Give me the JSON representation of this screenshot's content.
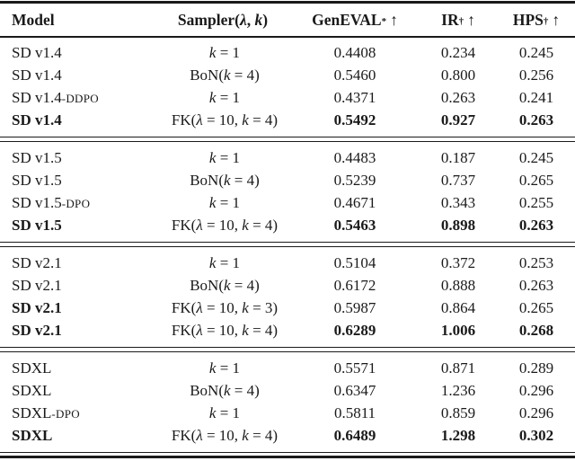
{
  "colors": {
    "text": "#1a1a1a",
    "background": "#ffffff",
    "rule": "#1a1a1a"
  },
  "table": {
    "header": [
      {
        "segments": [
          {
            "t": "Model"
          }
        ],
        "sup": "",
        "arrow": ""
      },
      {
        "segments": [
          {
            "t": "Sampler("
          },
          {
            "t": "λ",
            "i": true
          },
          {
            "t": ", "
          },
          {
            "t": "k",
            "i": true
          },
          {
            "t": ")"
          }
        ],
        "sup": "",
        "arrow": ""
      },
      {
        "segments": [
          {
            "t": "GenEVAL"
          }
        ],
        "sup": "*",
        "arrow": "↑"
      },
      {
        "segments": [
          {
            "t": "IR"
          }
        ],
        "sup": "†",
        "arrow": "↑"
      },
      {
        "segments": [
          {
            "t": "HPS"
          }
        ],
        "sup": "†",
        "arrow": "↑"
      }
    ],
    "blocks": [
      {
        "rows": [
          {
            "model": "SD v1.4",
            "suffix": "",
            "bold_model": false,
            "bold_values": false,
            "sampler": [
              {
                "t": "k",
                "i": true
              },
              {
                "t": " = 1"
              }
            ],
            "values": [
              "0.4408",
              "0.234",
              "0.245"
            ]
          },
          {
            "model": "SD v1.4",
            "suffix": "",
            "bold_model": false,
            "bold_values": false,
            "sampler": [
              {
                "t": "BoN("
              },
              {
                "t": "k",
                "i": true
              },
              {
                "t": " = 4)"
              }
            ],
            "values": [
              "0.5460",
              "0.800",
              "0.256"
            ]
          },
          {
            "model": "SD v1.4",
            "suffix": "-DDPO",
            "bold_model": false,
            "bold_values": false,
            "sampler": [
              {
                "t": "k",
                "i": true
              },
              {
                "t": " = 1"
              }
            ],
            "values": [
              "0.4371",
              "0.263",
              "0.241"
            ]
          },
          {
            "model": "SD v1.4",
            "suffix": "",
            "bold_model": true,
            "bold_values": true,
            "sampler": [
              {
                "t": "FK("
              },
              {
                "t": "λ",
                "i": true
              },
              {
                "t": " = 10, "
              },
              {
                "t": "k",
                "i": true
              },
              {
                "t": " = 4)"
              }
            ],
            "values": [
              "0.5492",
              "0.927",
              "0.263"
            ]
          }
        ]
      },
      {
        "rows": [
          {
            "model": "SD v1.5",
            "suffix": "",
            "bold_model": false,
            "bold_values": false,
            "sampler": [
              {
                "t": "k",
                "i": true
              },
              {
                "t": " = 1"
              }
            ],
            "values": [
              "0.4483",
              "0.187",
              "0.245"
            ]
          },
          {
            "model": "SD v1.5",
            "suffix": "",
            "bold_model": false,
            "bold_values": false,
            "sampler": [
              {
                "t": "BoN("
              },
              {
                "t": "k",
                "i": true
              },
              {
                "t": " = 4)"
              }
            ],
            "values": [
              "0.5239",
              "0.737",
              "0.265"
            ]
          },
          {
            "model": "SD v1.5",
            "suffix": "-DPO",
            "bold_model": false,
            "bold_values": false,
            "sampler": [
              {
                "t": "k",
                "i": true
              },
              {
                "t": " = 1"
              }
            ],
            "values": [
              "0.4671",
              "0.343",
              "0.255"
            ]
          },
          {
            "model": "SD v1.5",
            "suffix": "",
            "bold_model": true,
            "bold_values": true,
            "sampler": [
              {
                "t": "FK("
              },
              {
                "t": "λ",
                "i": true
              },
              {
                "t": " = 10, "
              },
              {
                "t": "k",
                "i": true
              },
              {
                "t": " = 4)"
              }
            ],
            "values": [
              "0.5463",
              "0.898",
              "0.263"
            ]
          }
        ]
      },
      {
        "rows": [
          {
            "model": "SD v2.1",
            "suffix": "",
            "bold_model": false,
            "bold_values": false,
            "sampler": [
              {
                "t": "k",
                "i": true
              },
              {
                "t": " = 1"
              }
            ],
            "values": [
              "0.5104",
              "0.372",
              "0.253"
            ]
          },
          {
            "model": "SD v2.1",
            "suffix": "",
            "bold_model": false,
            "bold_values": false,
            "sampler": [
              {
                "t": "BoN("
              },
              {
                "t": "k",
                "i": true
              },
              {
                "t": " = 4)"
              }
            ],
            "values": [
              "0.6172",
              "0.888",
              "0.263"
            ]
          },
          {
            "model": "SD v2.1",
            "suffix": "",
            "bold_model": true,
            "bold_values": false,
            "sampler": [
              {
                "t": "FK("
              },
              {
                "t": "λ",
                "i": true
              },
              {
                "t": " = 10, "
              },
              {
                "t": "k",
                "i": true
              },
              {
                "t": " = 3)"
              }
            ],
            "values": [
              "0.5987",
              "0.864",
              "0.265"
            ]
          },
          {
            "model": "SD v2.1",
            "suffix": "",
            "bold_model": true,
            "bold_values": true,
            "sampler": [
              {
                "t": "FK("
              },
              {
                "t": "λ",
                "i": true
              },
              {
                "t": " = 10, "
              },
              {
                "t": "k",
                "i": true
              },
              {
                "t": " = 4)"
              }
            ],
            "values": [
              "0.6289",
              "1.006",
              "0.268"
            ]
          }
        ]
      },
      {
        "rows": [
          {
            "model": "SDXL",
            "suffix": "",
            "bold_model": false,
            "bold_values": false,
            "sampler": [
              {
                "t": "k",
                "i": true
              },
              {
                "t": " = 1"
              }
            ],
            "values": [
              "0.5571",
              "0.871",
              "0.289"
            ]
          },
          {
            "model": "SDXL",
            "suffix": "",
            "bold_model": false,
            "bold_values": false,
            "sampler": [
              {
                "t": "BoN("
              },
              {
                "t": "k",
                "i": true
              },
              {
                "t": " = 4)"
              }
            ],
            "values": [
              "0.6347",
              "1.236",
              "0.296"
            ]
          },
          {
            "model": "SDXL",
            "suffix": "-DPO",
            "bold_model": false,
            "bold_values": false,
            "sampler": [
              {
                "t": "k",
                "i": true
              },
              {
                "t": " = 1"
              }
            ],
            "values": [
              "0.5811",
              "0.859",
              "0.296"
            ]
          },
          {
            "model": "SDXL",
            "suffix": "",
            "bold_model": true,
            "bold_values": true,
            "sampler": [
              {
                "t": "FK("
              },
              {
                "t": "λ",
                "i": true
              },
              {
                "t": " = 10, "
              },
              {
                "t": "k",
                "i": true
              },
              {
                "t": " = 4)"
              }
            ],
            "values": [
              "0.6489",
              "1.298",
              "0.302"
            ]
          }
        ]
      }
    ]
  }
}
